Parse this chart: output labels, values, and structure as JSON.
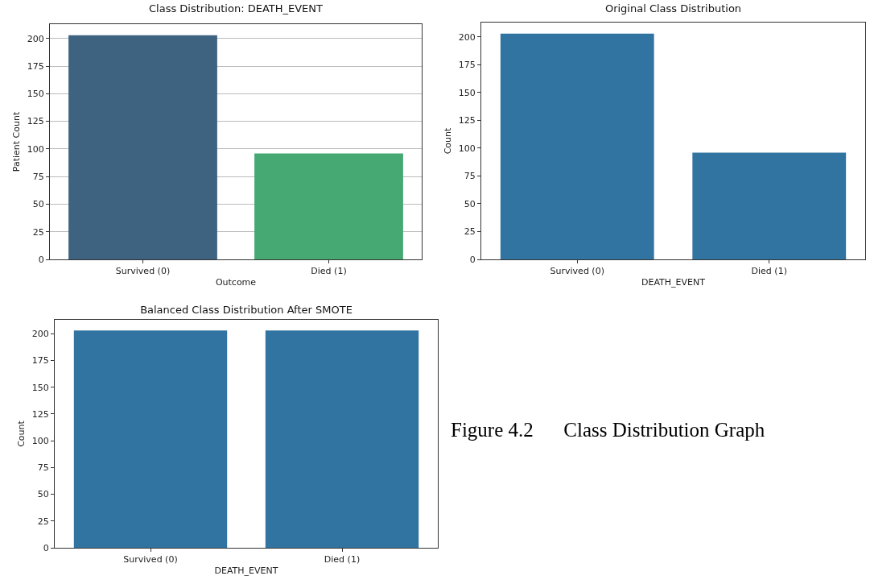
{
  "chart_data": [
    {
      "type": "bar",
      "title": "Class Distribution: DEATH_EVENT",
      "xlabel": "Outcome",
      "ylabel": "Patient Count",
      "categories": [
        "Survived (0)",
        "Died (1)"
      ],
      "values": [
        203,
        96
      ],
      "colors": [
        "#3e6381",
        "#46a973"
      ],
      "ylim": [
        0,
        213
      ],
      "yticks": [
        0,
        25,
        50,
        75,
        100,
        125,
        150,
        175,
        200
      ],
      "grid": "y"
    },
    {
      "type": "bar",
      "title": "Original Class Distribution",
      "xlabel": "DEATH_EVENT",
      "ylabel": "Count",
      "categories": [
        "Survived (0)",
        "Died (1)"
      ],
      "values": [
        203,
        96
      ],
      "color": "#3274a1",
      "ylim": [
        0,
        213
      ],
      "yticks": [
        0,
        25,
        50,
        75,
        100,
        125,
        150,
        175,
        200
      ]
    },
    {
      "type": "bar",
      "title": "Balanced Class Distribution After SMOTE",
      "xlabel": "DEATH_EVENT",
      "ylabel": "Count",
      "categories": [
        "Survived (0)",
        "Died (1)"
      ],
      "values": [
        203,
        203
      ],
      "color": "#3274a1",
      "ylim": [
        0,
        213
      ],
      "yticks": [
        0,
        25,
        50,
        75,
        100,
        125,
        150,
        175,
        200
      ]
    },
    {
      "type": "other",
      "annotations": [
        "Figure 4.2      Class Distribution Graph"
      ]
    }
  ]
}
